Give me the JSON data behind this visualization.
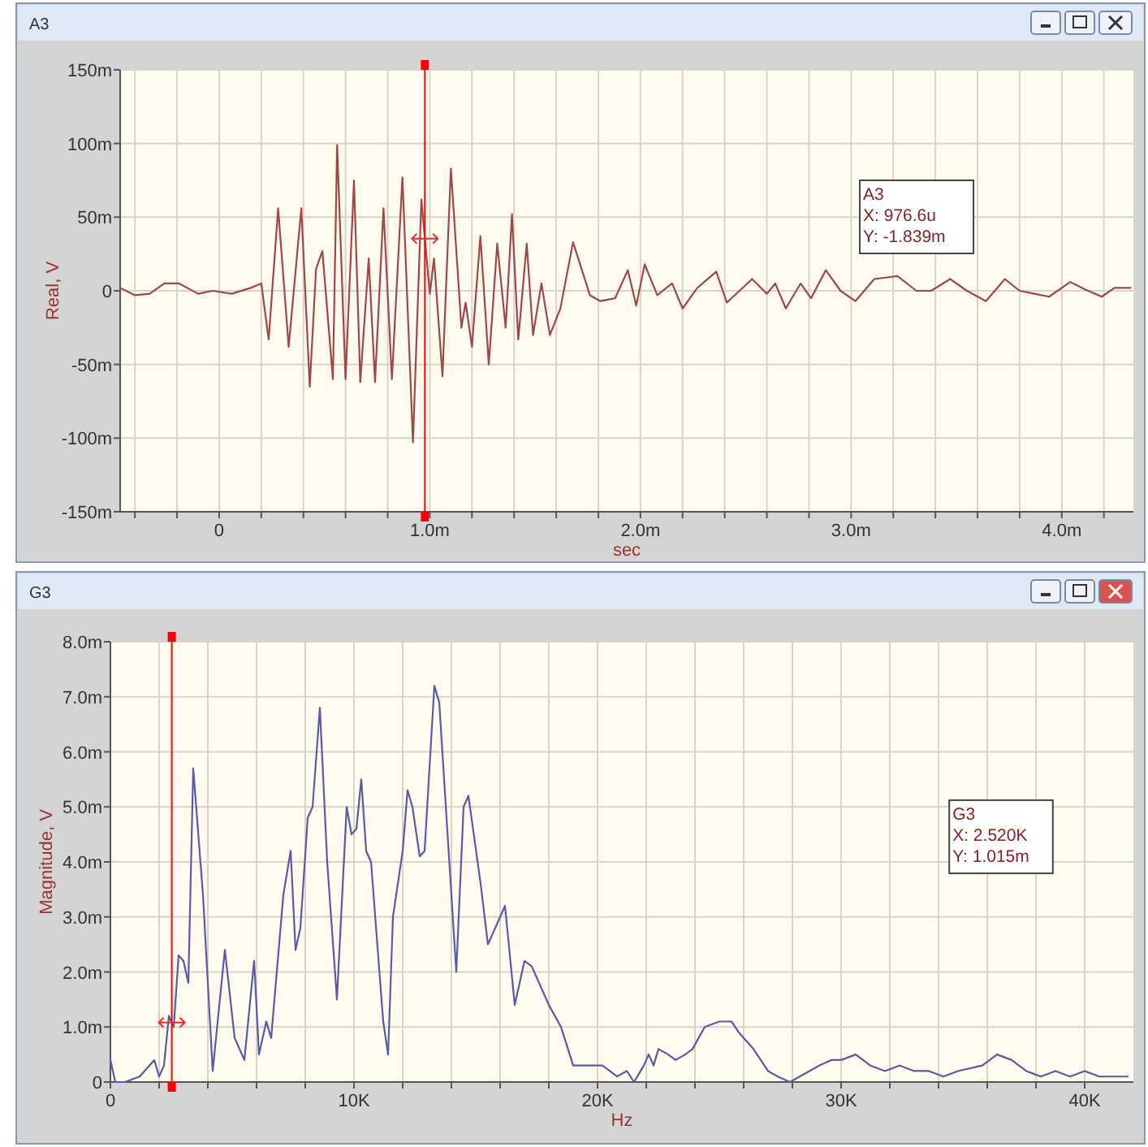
{
  "chart_data": [
    {
      "type": "line",
      "title": "A3",
      "xlabel": "sec",
      "ylabel": "Real, V",
      "xlim": [
        -0.47,
        4.34
      ],
      "ylim": [
        -150,
        150
      ],
      "xticks": [
        {
          "value": -0.4,
          "label": null
        },
        {
          "value": -0.2,
          "label": null
        },
        0,
        {
          "value": 0.2,
          "label": null
        },
        {
          "value": 0.4,
          "label": null
        },
        {
          "value": 0.6,
          "label": null
        },
        {
          "value": 0.8,
          "label": null
        },
        {
          "value": 1,
          "label": "1.0m"
        },
        {
          "value": 1.2,
          "label": null
        },
        {
          "value": 1.4,
          "label": null
        },
        {
          "value": 1.6,
          "label": null
        },
        {
          "value": 1.8,
          "label": null
        },
        {
          "value": 2,
          "label": "2.0m"
        },
        {
          "value": 2.2,
          "label": null
        },
        {
          "value": 2.4,
          "label": null
        },
        {
          "value": 2.6,
          "label": null
        },
        {
          "value": 2.8,
          "label": null
        },
        {
          "value": 3,
          "label": "3.0m"
        },
        {
          "value": 3.2,
          "label": null
        },
        {
          "value": 3.4,
          "label": null
        },
        {
          "value": 3.6,
          "label": null
        },
        {
          "value": 3.8,
          "label": null
        },
        {
          "value": 4,
          "label": "4.0m"
        },
        {
          "value": 4.2,
          "label": null
        }
      ],
      "yticks": [
        {
          "value": -150,
          "label": "-150m"
        },
        {
          "value": -100,
          "label": "-100m"
        },
        {
          "value": -50,
          "label": "-50m"
        },
        0,
        {
          "value": 50,
          "label": "50m"
        },
        {
          "value": 100,
          "label": "100m"
        },
        {
          "value": 150,
          "label": "150m"
        }
      ],
      "grid": true,
      "marker": "none",
      "line_style": "solid",
      "ref_lines": [
        {
          "axis": "x",
          "value": 0.9766,
          "label": null,
          "color": "#ff0000"
        }
      ],
      "annotations": [
        "A3\nX: 976.6u\nY: -1.839m"
      ],
      "series": [
        {
          "color": "#a04848",
          "x": [
            -0.47,
            -0.4,
            -0.33,
            -0.26,
            -0.19,
            -0.1,
            -0.03,
            0.06,
            0.15,
            0.2,
            0.235,
            0.28,
            0.33,
            0.39,
            0.43,
            0.46,
            0.49,
            0.54,
            0.56,
            0.6,
            0.64,
            0.67,
            0.71,
            0.74,
            0.78,
            0.82,
            0.87,
            0.92,
            0.96,
            1,
            1.02,
            1.06,
            1.1,
            1.15,
            1.17,
            1.2,
            1.24,
            1.28,
            1.32,
            1.36,
            1.39,
            1.42,
            1.46,
            1.49,
            1.53,
            1.57,
            1.62,
            1.68,
            1.76,
            1.81,
            1.88,
            1.94,
            1.98,
            2.02,
            2.08,
            2.15,
            2.2,
            2.27,
            2.36,
            2.41,
            2.53,
            2.6,
            2.64,
            2.69,
            2.76,
            2.81,
            2.88,
            2.95,
            3.02,
            3.11,
            3.22,
            3.31,
            3.38,
            3.47,
            3.55,
            3.64,
            3.73,
            3.8,
            3.87,
            3.94,
            4.04,
            4.11,
            4.19,
            4.25,
            4.33
          ],
          "values": [
            2,
            -3,
            -2,
            5,
            5,
            -2,
            0,
            -2,
            2,
            5,
            -33,
            56,
            -38,
            56,
            -65,
            15,
            27,
            -60,
            99,
            -60,
            75,
            -62,
            22,
            -62,
            56,
            -60,
            77,
            -103,
            62,
            -2,
            22,
            -58,
            83,
            -25,
            -8,
            -38,
            37,
            -50,
            32,
            -25,
            52,
            -33,
            32,
            -30,
            5,
            -30,
            -12,
            33,
            -3,
            -7,
            -5,
            14,
            -10,
            18,
            -3,
            5,
            -12,
            2,
            13,
            -8,
            8,
            -2,
            5,
            -12,
            5,
            -5,
            14,
            0,
            -7,
            8,
            10,
            0,
            0,
            8,
            0,
            -7,
            8,
            0,
            -2,
            -4,
            6,
            1,
            -4,
            2,
            2
          ]
        }
      ]
    },
    {
      "type": "line",
      "title": "G3",
      "xlabel": "Hz",
      "ylabel": "Magnitude, V",
      "xlim": [
        0,
        42000
      ],
      "ylim": [
        0,
        8
      ],
      "xticks": [
        0,
        {
          "value": 2000,
          "label": null
        },
        {
          "value": 4000,
          "label": null
        },
        {
          "value": 6000,
          "label": null
        },
        {
          "value": 8000,
          "label": null
        },
        {
          "value": 10000,
          "label": "10K"
        },
        {
          "value": 12000,
          "label": null
        },
        {
          "value": 14000,
          "label": null
        },
        {
          "value": 16000,
          "label": null
        },
        {
          "value": 18000,
          "label": null
        },
        {
          "value": 20000,
          "label": "20K"
        },
        {
          "value": 22000,
          "label": null
        },
        {
          "value": 24000,
          "label": null
        },
        {
          "value": 26000,
          "label": null
        },
        {
          "value": 28000,
          "label": null
        },
        {
          "value": 30000,
          "label": "30K"
        },
        {
          "value": 32000,
          "label": null
        },
        {
          "value": 34000,
          "label": null
        },
        {
          "value": 36000,
          "label": null
        },
        {
          "value": 38000,
          "label": null
        },
        {
          "value": 40000,
          "label": "40K"
        }
      ],
      "yticks": [
        0,
        {
          "value": 1,
          "label": "1.0m"
        },
        {
          "value": 2,
          "label": "2.0m"
        },
        {
          "value": 3,
          "label": "3.0m"
        },
        {
          "value": 4,
          "label": "4.0m"
        },
        {
          "value": 5,
          "label": "5.0m"
        },
        {
          "value": 6,
          "label": "6.0m"
        },
        {
          "value": 7,
          "label": "7.0m"
        },
        {
          "value": 8,
          "label": "8.0m"
        }
      ],
      "grid": true,
      "marker": "none",
      "line_style": "solid",
      "ref_lines": [
        {
          "axis": "x",
          "value": 2520,
          "label": null,
          "color": "#ff0000"
        }
      ],
      "annotations": [
        "G3\nX: 2.520K\nY: 1.015m"
      ],
      "series": [
        {
          "color": "#5a5aa8",
          "x": [
            0,
            200,
            600,
            1200,
            1800,
            2000,
            2200,
            2400,
            2600,
            2800,
            3000,
            3200,
            3400,
            3800,
            4200,
            4700,
            5100,
            5500,
            5900,
            6100,
            6400,
            6600,
            7100,
            7400,
            7600,
            7800,
            8100,
            8300,
            8600,
            8900,
            9300,
            9700,
            9900,
            10100,
            10300,
            10500,
            10700,
            11200,
            11400,
            11600,
            12000,
            12200,
            12400,
            12700,
            12900,
            13300,
            13500,
            14200,
            14500,
            14700,
            15200,
            15500,
            16200,
            16600,
            17000,
            17300,
            18000,
            18500,
            19000,
            19700,
            20200,
            20800,
            21200,
            21500,
            21900,
            22100,
            22300,
            22500,
            22900,
            23200,
            23600,
            23900,
            24400,
            25000,
            25500,
            25800,
            26400,
            27000,
            27400,
            27900,
            28300,
            29100,
            29600,
            30000,
            30600,
            31200,
            31800,
            32400,
            33000,
            33600,
            34200,
            34800,
            35800,
            36400,
            37000,
            37600,
            38200,
            38800,
            39400,
            40000,
            40600,
            41200,
            41800
          ],
          "values": [
            0.4,
            0,
            0,
            0.1,
            0.4,
            0.1,
            0.3,
            1.2,
            1,
            2.3,
            2.2,
            1.8,
            5.7,
            3.4,
            0.2,
            2.4,
            0.8,
            0.4,
            2.2,
            0.5,
            1.1,
            0.8,
            3.4,
            4.2,
            2.4,
            2.8,
            4.8,
            5,
            6.8,
            4,
            1.5,
            5,
            4.5,
            4.6,
            5.5,
            4.2,
            4,
            1.1,
            0.5,
            3,
            4.2,
            5.3,
            5,
            4.1,
            4.2,
            7.2,
            6.9,
            2,
            5,
            5.2,
            3.6,
            2.5,
            3.2,
            1.4,
            2.2,
            2.1,
            1.4,
            1,
            0.3,
            0.3,
            0.3,
            0.1,
            0.2,
            0,
            0.3,
            0.5,
            0.3,
            0.6,
            0.5,
            0.4,
            0.5,
            0.6,
            1,
            1.1,
            1.1,
            0.9,
            0.6,
            0.2,
            0.1,
            0,
            0.1,
            0.3,
            0.4,
            0.4,
            0.5,
            0.3,
            0.2,
            0.3,
            0.2,
            0.2,
            0.1,
            0.2,
            0.3,
            0.5,
            0.4,
            0.2,
            0.1,
            0.2,
            0.1,
            0.2,
            0.1,
            0.1,
            0.1
          ]
        }
      ]
    }
  ]
}
